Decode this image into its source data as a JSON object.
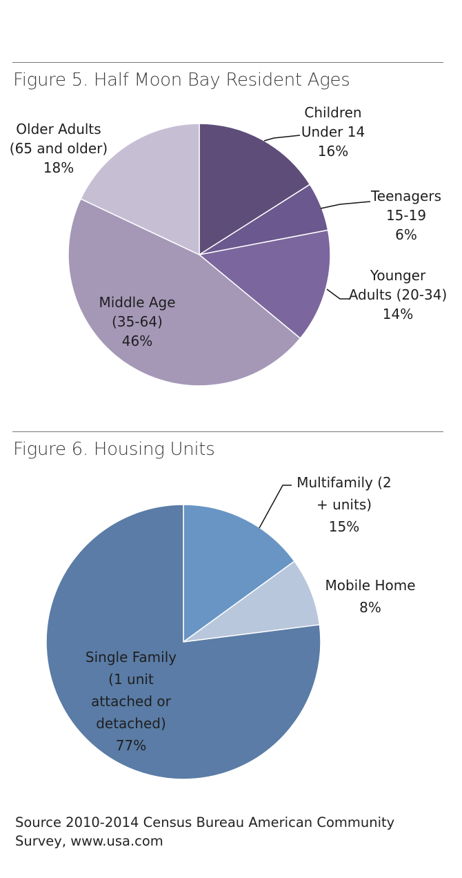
{
  "chart_data": [
    {
      "type": "pie",
      "title": "Figure 5. Half Moon Bay Resident Ages",
      "slices": [
        {
          "label_lines": [
            "Children",
            "Under 14"
          ],
          "percent_label": "16%",
          "value": 16,
          "color": "#5e4d79"
        },
        {
          "label_lines": [
            "Teenagers",
            "15-19"
          ],
          "percent_label": "6%",
          "value": 6,
          "color": "#6b588e"
        },
        {
          "label_lines": [
            "Younger",
            "Adults (20-34)"
          ],
          "percent_label": "14%",
          "value": 14,
          "color": "#7b669d"
        },
        {
          "label_lines": [
            "Middle Age",
            "(35-64)"
          ],
          "percent_label": "46%",
          "value": 46,
          "color": "#a598b7"
        },
        {
          "label_lines": [
            "Older Adults",
            "(65 and older)"
          ],
          "percent_label": "18%",
          "value": 18,
          "color": "#c6bfd4"
        }
      ]
    },
    {
      "type": "pie",
      "title": "Figure 6. Housing Units",
      "slices": [
        {
          "label_lines": [
            "Multifamily (2",
            "+ units)"
          ],
          "percent_label": "15%",
          "value": 15,
          "color": "#6895c4"
        },
        {
          "label_lines": [
            "Mobile Home"
          ],
          "percent_label": "8%",
          "value": 8,
          "color": "#b9c7dc"
        },
        {
          "label_lines": [
            "Single Family",
            "(1 unit",
            "attached or",
            "detached)"
          ],
          "percent_label": "77%",
          "value": 77,
          "color": "#5a7ca6"
        }
      ]
    }
  ],
  "source": "Source 2010-2014 Census Bureau American Community Survey, www.usa.com"
}
